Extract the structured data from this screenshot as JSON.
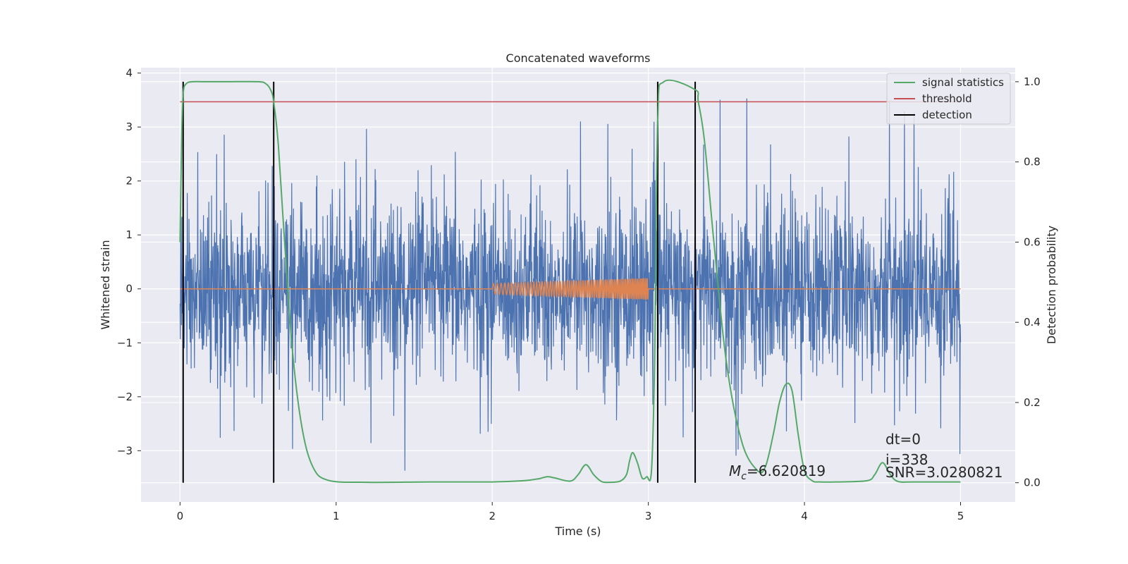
{
  "chart_data": {
    "type": "line",
    "title": "Concatenated waveforms",
    "xlabel": "Time (s)",
    "ylabel": "Whitened strain",
    "y2label": "Detection probability",
    "xlim": [
      -0.25,
      5.35
    ],
    "ylim": [
      -3.95,
      4.1
    ],
    "y2lim": [
      -0.048,
      1.035
    ],
    "x_ticks": [
      0,
      1,
      2,
      3,
      4,
      5
    ],
    "x_tick_labels": [
      "0",
      "1",
      "2",
      "3",
      "4",
      "5"
    ],
    "y_ticks": [
      -3,
      -2,
      -1,
      0,
      1,
      2,
      3,
      4
    ],
    "y_tick_labels": [
      "−3",
      "−2",
      "−1",
      "0",
      "1",
      "2",
      "3",
      "4"
    ],
    "y2_ticks": [
      0.0,
      0.2,
      0.4,
      0.6,
      0.8,
      1.0
    ],
    "y2_tick_labels": [
      "0.0",
      "0.2",
      "0.4",
      "0.6",
      "0.8",
      "1.0"
    ],
    "grid": true,
    "legend_placement": "upper-right",
    "colors": {
      "background": "#eaeaf2",
      "grid": "#ffffff",
      "strain": "#4c72b0",
      "template": "#dd8452",
      "signal_statistics": "#55a868",
      "threshold": "#c44e52",
      "detection": "#000000"
    },
    "strain": {
      "x_range": [
        0,
        5
      ],
      "typical_amplitude": 1.7,
      "peak_amplitude": 3.6
    },
    "template": {
      "x_range": [
        2.0,
        3.0
      ],
      "amplitude_range": [
        0.1,
        0.2
      ]
    },
    "series": [
      {
        "name": "signal statistics",
        "x": [
          0.0,
          0.01,
          0.02,
          0.04,
          0.08,
          0.15,
          0.3,
          0.5,
          0.55,
          0.58,
          0.6,
          0.63,
          0.67,
          0.72,
          0.78,
          0.85,
          0.95,
          1.2,
          1.6,
          2.0,
          2.2,
          2.3,
          2.35,
          2.4,
          2.5,
          2.55,
          2.6,
          2.65,
          2.7,
          2.75,
          2.82,
          2.86,
          2.88,
          2.9,
          2.93,
          2.96,
          2.99,
          3.02,
          3.04,
          3.06,
          3.1,
          3.3,
          3.32,
          3.36,
          3.42,
          3.5,
          3.6,
          3.7,
          3.75,
          3.8,
          3.84,
          3.88,
          3.92,
          3.96,
          4.0,
          4.05,
          4.1,
          4.2,
          4.4,
          4.45,
          4.5,
          4.55,
          4.6,
          4.7,
          5.0
        ],
        "values": [
          0.6,
          0.85,
          0.97,
          0.995,
          1.0,
          1.0,
          1.0,
          1.0,
          0.995,
          0.98,
          0.95,
          0.84,
          0.6,
          0.33,
          0.14,
          0.04,
          0.006,
          0.001,
          0.002,
          0.002,
          0.005,
          0.01,
          0.015,
          0.012,
          0.004,
          0.02,
          0.045,
          0.02,
          0.003,
          0.001,
          0.004,
          0.02,
          0.055,
          0.075,
          0.05,
          0.012,
          0.015,
          0.03,
          0.3,
          0.9,
          1.0,
          0.98,
          0.95,
          0.85,
          0.6,
          0.3,
          0.1,
          0.03,
          0.04,
          0.12,
          0.2,
          0.245,
          0.23,
          0.12,
          0.03,
          0.005,
          0.002,
          0.002,
          0.005,
          0.02,
          0.05,
          0.02,
          0.003,
          0.002,
          0.002
        ]
      },
      {
        "name": "threshold",
        "x": [
          0,
          5
        ],
        "values": [
          0.95,
          0.95
        ]
      },
      {
        "name": "detection",
        "x": [
          0.02,
          0.6,
          3.06,
          3.3
        ]
      }
    ],
    "annotations": {
      "mc_symbol": "M",
      "mc_subscript": "c",
      "mc_value": "=6.620819",
      "dt": "dt=0",
      "i": "i=338",
      "snr": "SNR=3.0280821"
    }
  }
}
